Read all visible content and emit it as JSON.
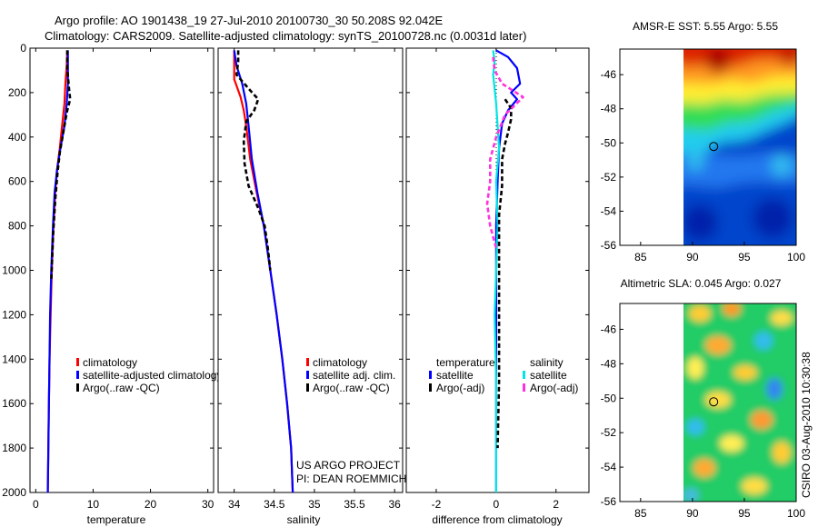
{
  "header": {
    "line1": "Argo profile: AO 1901438_19 27-Jul-2010 20100730_30 50.208S 92.042E",
    "line2": "Climatology: CARS2009. Satellite-adjusted climatology: synTS_20100728.nc (0.0031d later)"
  },
  "watermark": "CSIRO 03-Aug-2010 10:30:38",
  "colors": {
    "climatology": "#ff0000",
    "satellite": "#0000ff",
    "argo": "#000000",
    "sal_satellite": "#00e5e5",
    "sal_argo": "#ff33dd"
  },
  "chart_data": [
    {
      "type": "line",
      "id": "temperature",
      "xlabel": "temperature",
      "ylabel": "",
      "xlim": [
        -1,
        31
      ],
      "ylim": [
        2000,
        0
      ],
      "xticks": [
        0,
        10,
        20,
        30
      ],
      "yticks": [
        0,
        200,
        400,
        600,
        800,
        1000,
        1200,
        1400,
        1600,
        1800,
        2000
      ],
      "series": [
        {
          "name": "climatology",
          "color": "#ff0000",
          "dash": "",
          "points": [
            [
              5.5,
              10
            ],
            [
              5.4,
              80
            ],
            [
              5.2,
              150
            ],
            [
              5.0,
              250
            ],
            [
              4.6,
              350
            ],
            [
              4.2,
              450
            ],
            [
              3.7,
              550
            ],
            [
              3.4,
              650
            ],
            [
              3.1,
              800
            ],
            [
              2.8,
              1000
            ],
            [
              2.6,
              1200
            ],
            [
              2.4,
              1400
            ],
            [
              2.3,
              1600
            ],
            [
              2.2,
              1800
            ],
            [
              2.1,
              2000
            ]
          ]
        },
        {
          "name": "satellite-adjusted climatology",
          "color": "#0000ff",
          "dash": "",
          "points": [
            [
              5.6,
              10
            ],
            [
              5.6,
              80
            ],
            [
              5.6,
              160
            ],
            [
              5.4,
              250
            ],
            [
              5.0,
              350
            ],
            [
              4.3,
              450
            ],
            [
              3.7,
              550
            ],
            [
              3.3,
              650
            ],
            [
              3.0,
              800
            ],
            [
              2.7,
              1000
            ],
            [
              2.5,
              1200
            ],
            [
              2.4,
              1400
            ],
            [
              2.3,
              1600
            ],
            [
              2.2,
              1800
            ],
            [
              2.1,
              2000
            ]
          ]
        },
        {
          "name": "Argo(..raw -QC)",
          "color": "#000000",
          "dash": "5,3",
          "points": [
            [
              5.5,
              10
            ],
            [
              5.5,
              90
            ],
            [
              5.8,
              180
            ],
            [
              6.0,
              230
            ],
            [
              5.5,
              280
            ],
            [
              5.2,
              320
            ],
            [
              4.8,
              380
            ],
            [
              4.2,
              470
            ],
            [
              3.8,
              560
            ],
            [
              3.4,
              680
            ],
            [
              3.0,
              850
            ],
            [
              2.7,
              1050
            ]
          ]
        }
      ],
      "legend": [
        "climatology",
        "satellite-adjusted climatology",
        "Argo(..raw -QC)"
      ]
    },
    {
      "type": "line",
      "id": "salinity",
      "xlabel": "salinity",
      "xlim": [
        33.8,
        36.1
      ],
      "ylim": [
        2000,
        0
      ],
      "xticks": [
        34,
        34.5,
        35,
        35.5,
        36
      ],
      "series": [
        {
          "name": "climatology",
          "color": "#ff0000",
          "dash": "",
          "points": [
            [
              34.0,
              10
            ],
            [
              34.0,
              80
            ],
            [
              34.0,
              140
            ],
            [
              34.08,
              220
            ],
            [
              34.12,
              280
            ],
            [
              34.15,
              350
            ],
            [
              34.2,
              500
            ],
            [
              34.28,
              650
            ],
            [
              34.37,
              800
            ],
            [
              34.45,
              1000
            ],
            [
              34.53,
              1200
            ],
            [
              34.6,
              1400
            ],
            [
              34.66,
              1600
            ],
            [
              34.71,
              1800
            ],
            [
              34.73,
              2000
            ]
          ]
        },
        {
          "name": "satellite adj. clim.",
          "color": "#0000ff",
          "dash": "",
          "points": [
            [
              34.0,
              10
            ],
            [
              34.03,
              80
            ],
            [
              34.1,
              160
            ],
            [
              34.15,
              250
            ],
            [
              34.18,
              350
            ],
            [
              34.22,
              500
            ],
            [
              34.29,
              650
            ],
            [
              34.37,
              800
            ],
            [
              34.45,
              1000
            ],
            [
              34.53,
              1200
            ],
            [
              34.6,
              1400
            ],
            [
              34.66,
              1600
            ],
            [
              34.71,
              1800
            ],
            [
              34.73,
              2000
            ]
          ]
        },
        {
          "name": "Argo(..raw -QC)",
          "color": "#000000",
          "dash": "5,3",
          "points": [
            [
              34.05,
              10
            ],
            [
              34.05,
              60
            ],
            [
              34.03,
              120
            ],
            [
              34.2,
              190
            ],
            [
              34.3,
              230
            ],
            [
              34.25,
              280
            ],
            [
              34.15,
              330
            ],
            [
              34.12,
              420
            ],
            [
              34.13,
              520
            ],
            [
              34.18,
              620
            ],
            [
              34.3,
              720
            ],
            [
              34.38,
              800
            ],
            [
              34.42,
              900
            ],
            [
              34.45,
              1000
            ]
          ]
        }
      ],
      "legend": [
        "climatology",
        "satellite adj. clim.",
        "Argo(..raw -QC)"
      ],
      "annotation": [
        "US ARGO PROJECT",
        "PI: DEAN ROEMMICH"
      ]
    },
    {
      "type": "line",
      "id": "difference",
      "xlabel": "difference from climatology",
      "xlim": [
        -3.0,
        3.1
      ],
      "ylim": [
        2000,
        0
      ],
      "xticks": [
        -2,
        0,
        2
      ],
      "series": [
        {
          "name": "temperature satellite",
          "color": "#0000ff",
          "dash": "",
          "points": [
            [
              0.0,
              10
            ],
            [
              0.4,
              40
            ],
            [
              0.7,
              90
            ],
            [
              0.8,
              160
            ],
            [
              0.5,
              200
            ],
            [
              0.7,
              230
            ],
            [
              0.4,
              280
            ],
            [
              0.2,
              340
            ],
            [
              0.1,
              450
            ],
            [
              0.05,
              600
            ],
            [
              0.0,
              800
            ],
            [
              0.0,
              2000
            ]
          ]
        },
        {
          "name": "salinity satellite",
          "color": "#00e5e5",
          "dash": "",
          "points": [
            [
              -0.1,
              10
            ],
            [
              -0.05,
              60
            ],
            [
              -0.1,
              120
            ],
            [
              0.0,
              250
            ],
            [
              0.05,
              350
            ],
            [
              0.1,
              450
            ],
            [
              0.0,
              600
            ],
            [
              0.05,
              800
            ],
            [
              0.0,
              1000
            ],
            [
              -0.05,
              1200
            ],
            [
              0.0,
              1500
            ],
            [
              0.0,
              2000
            ]
          ]
        },
        {
          "name": "temperature Argo(-adj)",
          "color": "#000000",
          "dash": "5,3",
          "points": [
            [
              0.3,
              230
            ],
            [
              0.5,
              270
            ],
            [
              0.5,
              320
            ],
            [
              0.4,
              380
            ],
            [
              0.3,
              430
            ],
            [
              0.2,
              500
            ],
            [
              0.2,
              620
            ],
            [
              0.1,
              750
            ],
            [
              0.1,
              1100
            ],
            [
              0.1,
              1500
            ],
            [
              0.05,
              1800
            ]
          ]
        },
        {
          "name": "salinity Argo(-adj)",
          "color": "#ff33dd",
          "dash": "5,3",
          "points": [
            [
              -0.1,
              40
            ],
            [
              -0.05,
              100
            ],
            [
              0.2,
              160
            ],
            [
              0.9,
              220
            ],
            [
              0.6,
              260
            ],
            [
              0.3,
              300
            ],
            [
              0.0,
              400
            ],
            [
              -0.2,
              500
            ],
            [
              -0.2,
              600
            ],
            [
              -0.3,
              700
            ],
            [
              -0.2,
              800
            ],
            [
              0.0,
              900
            ]
          ]
        }
      ],
      "legend_temperature": {
        "title": "temperature",
        "items": [
          "satellite",
          "Argo(-adj)"
        ]
      },
      "legend_salinity": {
        "title": "salinity",
        "items": [
          "satellite",
          "Argo(-adj)"
        ]
      }
    },
    {
      "type": "heatmap",
      "id": "sst-map",
      "title": "AMSR-E SST: 5.55 Argo: 5.55",
      "xlim": [
        83,
        100
      ],
      "ylim": [
        -56,
        -44.5
      ],
      "xticks": [
        85,
        90,
        95,
        100
      ],
      "yticks": [
        -46,
        -48,
        -50,
        -52,
        -54,
        -56
      ],
      "data_extent_lon": [
        90,
        100
      ],
      "float_position": [
        92.042,
        -50.208
      ]
    },
    {
      "type": "heatmap",
      "id": "sla-map",
      "title": "Altimetric SLA: 0.045 Argo: 0.027",
      "xlim": [
        83,
        100
      ],
      "ylim": [
        -56,
        -44.5
      ],
      "xticks": [
        85,
        90,
        95,
        100
      ],
      "yticks": [
        -46,
        -48,
        -50,
        -52,
        -54,
        -56
      ],
      "data_extent_lon": [
        90,
        100
      ],
      "float_position": [
        92.042,
        -50.208
      ]
    }
  ]
}
